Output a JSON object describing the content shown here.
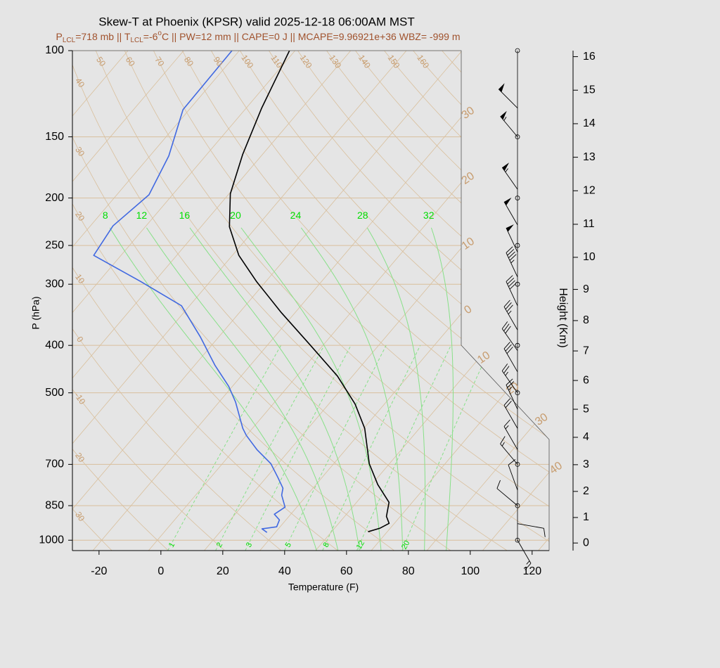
{
  "chart_data": {
    "type": "skewt",
    "title": "Skew-T at Phoenix (KPSR) valid 2025-12-18 06:00AM MST",
    "subtitle": [
      {
        "text": "P"
      },
      {
        "text": "LCL",
        "sub": true
      },
      {
        "text": "=718 mb || T"
      },
      {
        "text": "LCL",
        "sub": true
      },
      {
        "text": "=-6"
      },
      {
        "text": "o",
        "sup": true
      },
      {
        "text": "C || PW=12 mm || CAPE=0 J || MCAPE=9.96921e+36 WBZ= -999 m"
      }
    ],
    "xlabel": "Temperature (F)",
    "ylabel": "P (hPa)",
    "y2label": "Height (Km)",
    "xlim": [
      -28.6,
      125.5
    ],
    "ylim": [
      1050,
      100
    ],
    "ylog": true,
    "grid": true,
    "xticks": [
      -20,
      0,
      20,
      40,
      60,
      80,
      100,
      120
    ],
    "yticks": [
      100,
      150,
      200,
      250,
      300,
      400,
      500,
      700,
      850,
      1000
    ],
    "y2ticks": [
      0,
      1,
      2,
      3,
      4,
      5,
      6,
      7,
      8,
      9,
      10,
      11,
      12,
      13,
      14,
      15,
      16
    ],
    "series": [
      {
        "color": "#000000",
        "pressure": [
          100,
          131,
          163,
          196,
          229,
          262,
          296,
          343,
          398,
          462,
          527,
          591,
          698,
          770,
          837,
          894,
          924,
          945,
          961
        ],
        "values": [
          -95.8,
          -89.0,
          -82.4,
          -75.6,
          -66.8,
          -55.9,
          -43.1,
          -26.4,
          -8.6,
          9.1,
          22.5,
          32.3,
          43.5,
          52.0,
          60.5,
          63.5,
          66.3,
          64.7,
          61.8
        ]
      },
      {
        "color": "#4169e1",
        "pressure": [
          100,
          132,
          164,
          197,
          228,
          262,
          296,
          332,
          385,
          439,
          485,
          522,
          591,
          611,
          653,
          698,
          745,
          783,
          809,
          856,
          885,
          909,
          939,
          948,
          964
        ],
        "values": [
          -114.4,
          -114.0,
          -105.9,
          -101.6,
          -104.7,
          -102.8,
          -80.6,
          -60.6,
          -45.8,
          -33.5,
          -23.2,
          -16.7,
          -7.1,
          -4.0,
          3.3,
          11.7,
          17.8,
          22.3,
          23.8,
          28.2,
          26.7,
          29.9,
          30.9,
          26.7,
          29.3
        ]
      }
    ],
    "isotherms": [
      {
        "value": -30,
        "label": "30"
      },
      {
        "value": -20,
        "label": "20"
      },
      {
        "value": -10,
        "label": "10"
      },
      0,
      10,
      20,
      30,
      40
    ],
    "dry_adiabats": [
      {
        "value": -30,
        "label": "30"
      },
      {
        "value": -20,
        "label": "20"
      },
      -10,
      0,
      10,
      20,
      30,
      40,
      50,
      60,
      70,
      80,
      90,
      100,
      110,
      120,
      130,
      140,
      150,
      160
    ],
    "moist_adiabats": [
      8,
      12,
      16,
      20,
      24,
      28,
      32
    ],
    "mixing_ratios": [
      1,
      2,
      3,
      5,
      8,
      12,
      20
    ],
    "wind": {
      "pressure": [
        131,
        150,
        192,
        227,
        258,
        290,
        332,
        372,
        410,
        453,
        500,
        540,
        591,
        653,
        700,
        790,
        850,
        925,
        1000
      ],
      "speed": [
        50,
        55,
        55,
        50,
        50,
        45,
        40,
        35,
        30,
        30,
        25,
        25,
        20,
        15,
        15,
        10,
        10,
        10,
        15
      ],
      "direction": [
        315,
        320,
        325,
        330,
        335,
        335,
        335,
        330,
        325,
        330,
        325,
        335,
        330,
        330,
        320,
        340,
        310,
        100,
        150
      ]
    }
  }
}
